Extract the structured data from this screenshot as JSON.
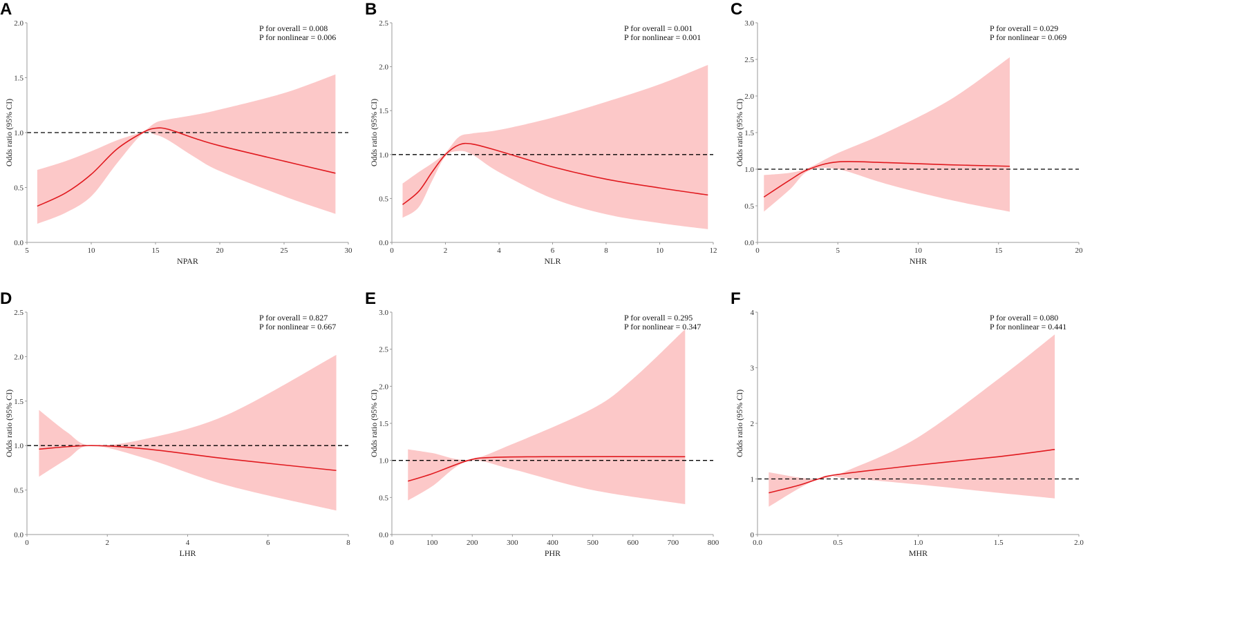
{
  "colors": {
    "line": "#e0191e",
    "band": "#fcc8c8",
    "reference": "#000000",
    "axis": "#999999"
  },
  "chart_data": [
    {
      "panel": "A",
      "type": "line",
      "xlabel": "NPAR",
      "ylabel": "Odds ratio (95% CI)",
      "xlim": [
        5,
        30
      ],
      "ylim": [
        0,
        2.0
      ],
      "xticks": [
        "5",
        "10",
        "15",
        "20",
        "25",
        "30"
      ],
      "xtick_values": [
        5,
        10,
        15,
        20,
        25,
        30
      ],
      "yticks": [
        "0.0",
        "0.5",
        "1.0",
        "1.5",
        "2.0"
      ],
      "ytick_values": [
        0,
        0.5,
        1,
        1.5,
        2
      ],
      "reference_y": 1,
      "annotations": [
        "P for overall = 0.008",
        "P for nonlinear = 0.006"
      ],
      "or": [
        [
          5.8,
          0.33
        ],
        [
          8,
          0.45
        ],
        [
          10,
          0.62
        ],
        [
          12,
          0.85
        ],
        [
          14,
          1.0
        ],
        [
          15,
          1.04
        ],
        [
          16,
          1.03
        ],
        [
          18,
          0.95
        ],
        [
          20,
          0.88
        ],
        [
          25,
          0.74
        ],
        [
          29,
          0.63
        ]
      ],
      "lower": [
        [
          5.8,
          0.17
        ],
        [
          8,
          0.27
        ],
        [
          10,
          0.42
        ],
        [
          12,
          0.72
        ],
        [
          14,
          0.99
        ],
        [
          15,
          0.98
        ],
        [
          16,
          0.93
        ],
        [
          18,
          0.78
        ],
        [
          20,
          0.65
        ],
        [
          25,
          0.42
        ],
        [
          29,
          0.26
        ]
      ],
      "upper": [
        [
          5.8,
          0.66
        ],
        [
          8,
          0.74
        ],
        [
          10,
          0.83
        ],
        [
          12,
          0.93
        ],
        [
          14,
          1.01
        ],
        [
          15,
          1.09
        ],
        [
          16,
          1.12
        ],
        [
          18,
          1.16
        ],
        [
          20,
          1.21
        ],
        [
          25,
          1.36
        ],
        [
          29,
          1.53
        ]
      ]
    },
    {
      "panel": "B",
      "type": "line",
      "xlabel": "NLR",
      "ylabel": "Odds ratio (95% CI)",
      "xlim": [
        0,
        12
      ],
      "ylim": [
        0,
        2.5
      ],
      "xticks": [
        "0",
        "2",
        "4",
        "6",
        "8",
        "10",
        "12"
      ],
      "xtick_values": [
        0,
        2,
        4,
        6,
        8,
        10,
        12
      ],
      "yticks": [
        "0.0",
        "0.5",
        "1.0",
        "1.5",
        "2.0",
        "2.5"
      ],
      "ytick_values": [
        0,
        0.5,
        1,
        1.5,
        2,
        2.5
      ],
      "reference_y": 1,
      "annotations": [
        "P for overall = 0.001",
        "P for nonlinear = 0.001"
      ],
      "or": [
        [
          0.4,
          0.43
        ],
        [
          1,
          0.58
        ],
        [
          1.5,
          0.8
        ],
        [
          2,
          1.0
        ],
        [
          2.5,
          1.11
        ],
        [
          3,
          1.12
        ],
        [
          4,
          1.04
        ],
        [
          6,
          0.86
        ],
        [
          8,
          0.72
        ],
        [
          10,
          0.62
        ],
        [
          11.8,
          0.54
        ]
      ],
      "lower": [
        [
          0.4,
          0.28
        ],
        [
          1,
          0.4
        ],
        [
          1.5,
          0.7
        ],
        [
          2,
          0.98
        ],
        [
          2.5,
          1.04
        ],
        [
          3,
          1.0
        ],
        [
          4,
          0.8
        ],
        [
          6,
          0.5
        ],
        [
          8,
          0.32
        ],
        [
          10,
          0.22
        ],
        [
          11.8,
          0.15
        ]
      ],
      "upper": [
        [
          0.4,
          0.67
        ],
        [
          1,
          0.8
        ],
        [
          1.5,
          0.9
        ],
        [
          2,
          1.02
        ],
        [
          2.5,
          1.2
        ],
        [
          3,
          1.24
        ],
        [
          4,
          1.28
        ],
        [
          6,
          1.42
        ],
        [
          8,
          1.6
        ],
        [
          10,
          1.8
        ],
        [
          11.8,
          2.02
        ]
      ]
    },
    {
      "panel": "C",
      "type": "line",
      "xlabel": "NHR",
      "ylabel": "Odds ratio (95% CI)",
      "xlim": [
        0,
        20
      ],
      "ylim": [
        0,
        3.0
      ],
      "xticks": [
        "0",
        "5",
        "10",
        "15",
        "20"
      ],
      "xtick_values": [
        0,
        5,
        10,
        15,
        20
      ],
      "yticks": [
        "0.0",
        "0.5",
        "1.0",
        "1.5",
        "2.0",
        "2.5",
        "3.0"
      ],
      "ytick_values": [
        0,
        0.5,
        1,
        1.5,
        2,
        2.5,
        3
      ],
      "reference_y": 1,
      "annotations": [
        "P for overall = 0.029",
        "P for nonlinear = 0.069"
      ],
      "or": [
        [
          0.4,
          0.62
        ],
        [
          2,
          0.85
        ],
        [
          3.2,
          1.0
        ],
        [
          5,
          1.1
        ],
        [
          8,
          1.09
        ],
        [
          12,
          1.06
        ],
        [
          15.7,
          1.04
        ]
      ],
      "lower": [
        [
          0.4,
          0.42
        ],
        [
          2,
          0.72
        ],
        [
          3.2,
          0.98
        ],
        [
          5,
          1.0
        ],
        [
          8,
          0.8
        ],
        [
          12,
          0.58
        ],
        [
          15.7,
          0.42
        ]
      ],
      "upper": [
        [
          0.4,
          0.92
        ],
        [
          2,
          0.95
        ],
        [
          3.2,
          1.02
        ],
        [
          5,
          1.22
        ],
        [
          8,
          1.5
        ],
        [
          12,
          1.95
        ],
        [
          15.7,
          2.53
        ]
      ]
    },
    {
      "panel": "D",
      "type": "line",
      "xlabel": "LHR",
      "ylabel": "Odds ratio (95% CI)",
      "xlim": [
        0,
        8
      ],
      "ylim": [
        0,
        2.5
      ],
      "xticks": [
        "0",
        "2",
        "4",
        "6",
        "8"
      ],
      "xtick_values": [
        0,
        2,
        4,
        6,
        8
      ],
      "yticks": [
        "0.0",
        "0.5",
        "1.0",
        "1.5",
        "2.0",
        "2.5"
      ],
      "ytick_values": [
        0,
        0.5,
        1,
        1.5,
        2,
        2.5
      ],
      "reference_y": 1,
      "annotations": [
        "P for overall = 0.827",
        "P for nonlinear = 0.667"
      ],
      "or": [
        [
          0.3,
          0.96
        ],
        [
          1.6,
          1.0
        ],
        [
          3,
          0.96
        ],
        [
          5,
          0.85
        ],
        [
          7.7,
          0.72
        ]
      ],
      "lower": [
        [
          0.3,
          0.65
        ],
        [
          1,
          0.85
        ],
        [
          1.6,
          1.0
        ],
        [
          3,
          0.85
        ],
        [
          5,
          0.55
        ],
        [
          7.7,
          0.27
        ]
      ],
      "upper": [
        [
          0.3,
          1.4
        ],
        [
          1,
          1.15
        ],
        [
          1.6,
          1.0
        ],
        [
          3,
          1.08
        ],
        [
          5,
          1.35
        ],
        [
          7.7,
          2.02
        ]
      ]
    },
    {
      "panel": "E",
      "type": "line",
      "xlabel": "PHR",
      "ylabel": "Odds ratio (95% CI)",
      "xlim": [
        0,
        800
      ],
      "ylim": [
        0,
        3.0
      ],
      "xticks": [
        "0",
        "100",
        "200",
        "300",
        "400",
        "500",
        "600",
        "700",
        "800"
      ],
      "xtick_values": [
        0,
        100,
        200,
        300,
        400,
        500,
        600,
        700,
        800
      ],
      "yticks": [
        "0.0",
        "0.5",
        "1.0",
        "1.5",
        "2.0",
        "2.5",
        "3.0"
      ],
      "ytick_values": [
        0,
        0.5,
        1,
        1.5,
        2,
        2.5,
        3
      ],
      "reference_y": 1,
      "annotations": [
        "P for overall = 0.295",
        "P for nonlinear = 0.347"
      ],
      "or": [
        [
          40,
          0.72
        ],
        [
          100,
          0.82
        ],
        [
          190,
          1.0
        ],
        [
          250,
          1.04
        ],
        [
          400,
          1.05
        ],
        [
          730,
          1.05
        ]
      ],
      "lower": [
        [
          40,
          0.46
        ],
        [
          100,
          0.65
        ],
        [
          190,
          0.99
        ],
        [
          300,
          0.88
        ],
        [
          500,
          0.6
        ],
        [
          730,
          0.41
        ]
      ],
      "upper": [
        [
          40,
          1.15
        ],
        [
          100,
          1.1
        ],
        [
          190,
          1.01
        ],
        [
          300,
          1.22
        ],
        [
          500,
          1.7
        ],
        [
          600,
          2.1
        ],
        [
          730,
          2.77
        ]
      ]
    },
    {
      "panel": "F",
      "type": "line",
      "xlabel": "MHR",
      "ylabel": "Odds ratio (95% CI)",
      "xlim": [
        0,
        2.0
      ],
      "ylim": [
        0,
        4
      ],
      "xticks": [
        "0.0",
        "0.5",
        "1.0",
        "1.5",
        "2.0"
      ],
      "xtick_values": [
        0,
        0.5,
        1,
        1.5,
        2
      ],
      "yticks": [
        "0",
        "1",
        "2",
        "3",
        "4"
      ],
      "ytick_values": [
        0,
        1,
        2,
        3,
        4
      ],
      "reference_y": 1,
      "annotations": [
        "P for overall = 0.080",
        "P for nonlinear = 0.441"
      ],
      "or": [
        [
          0.07,
          0.75
        ],
        [
          0.25,
          0.88
        ],
        [
          0.38,
          1.0
        ],
        [
          0.5,
          1.08
        ],
        [
          1.0,
          1.25
        ],
        [
          1.5,
          1.4
        ],
        [
          1.85,
          1.53
        ]
      ],
      "lower": [
        [
          0.07,
          0.5
        ],
        [
          0.38,
          1.0
        ],
        [
          0.6,
          1.0
        ],
        [
          1.0,
          0.9
        ],
        [
          1.5,
          0.75
        ],
        [
          1.85,
          0.65
        ]
      ],
      "upper": [
        [
          0.07,
          1.12
        ],
        [
          0.38,
          1.0
        ],
        [
          0.6,
          1.2
        ],
        [
          1.0,
          1.75
        ],
        [
          1.5,
          2.8
        ],
        [
          1.85,
          3.6
        ]
      ]
    }
  ]
}
